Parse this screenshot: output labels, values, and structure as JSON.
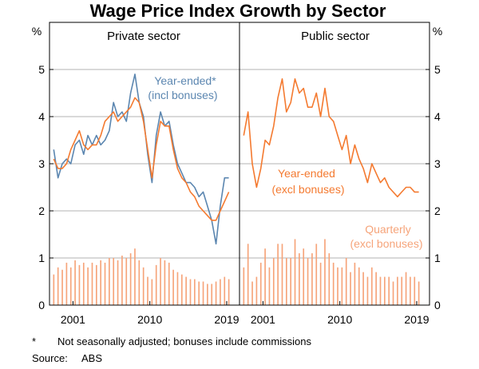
{
  "chart_data": {
    "type": "line",
    "title": "Wage Price Index Growth by Sector",
    "unit_label": "%",
    "ylim": [
      0,
      6
    ],
    "yticks": [
      0,
      1,
      2,
      3,
      4,
      5
    ],
    "panels": [
      {
        "title": "Private sector",
        "xlim": [
          1998.25,
          2020.5
        ],
        "xticks": [
          2001,
          2010,
          2019
        ],
        "xtick_labels": [
          "2001",
          "2010",
          "2019"
        ],
        "series": [
          {
            "name": "Year-ended*",
            "sublabel": "(incl bonuses)",
            "color": "#5b86b0",
            "type": "line",
            "x": [
              1998.75,
              1999.25,
              1999.75,
              2000.25,
              2000.75,
              2001.25,
              2001.75,
              2002.25,
              2002.75,
              2003.25,
              2003.75,
              2004.25,
              2004.75,
              2005.25,
              2005.75,
              2006.25,
              2006.75,
              2007.25,
              2007.75,
              2008.25,
              2008.75,
              2009.25,
              2009.75,
              2010.25,
              2010.75,
              2011.25,
              2011.75,
              2012.25,
              2012.75,
              2013.25,
              2013.75,
              2014.25,
              2014.75,
              2015.25,
              2015.75,
              2016.25,
              2016.75,
              2017.25,
              2017.75,
              2018.25,
              2018.75,
              2019.25
            ],
            "values": [
              3.3,
              2.7,
              3.0,
              3.1,
              3.0,
              3.4,
              3.5,
              3.2,
              3.6,
              3.4,
              3.6,
              3.4,
              3.5,
              3.7,
              4.3,
              4.0,
              4.1,
              3.9,
              4.5,
              4.9,
              4.3,
              4.0,
              3.2,
              2.6,
              3.6,
              4.1,
              3.8,
              3.9,
              3.4,
              3.0,
              2.8,
              2.6,
              2.6,
              2.5,
              2.3,
              2.4,
              2.1,
              1.8,
              1.3,
              2.1,
              2.7,
              2.7
            ]
          },
          {
            "name": "Year-ended",
            "sublabel": "(excl bonuses)",
            "color": "#f47a30",
            "type": "line",
            "x": [
              1998.75,
              1999.25,
              1999.75,
              2000.25,
              2000.75,
              2001.25,
              2001.75,
              2002.25,
              2002.75,
              2003.25,
              2003.75,
              2004.25,
              2004.75,
              2005.25,
              2005.75,
              2006.25,
              2006.75,
              2007.25,
              2007.75,
              2008.25,
              2008.75,
              2009.25,
              2009.75,
              2010.25,
              2010.75,
              2011.25,
              2011.75,
              2012.25,
              2012.75,
              2013.25,
              2013.75,
              2014.25,
              2014.75,
              2015.25,
              2015.75,
              2016.25,
              2016.75,
              2017.25,
              2017.75,
              2018.25,
              2018.75,
              2019.25
            ],
            "values": [
              3.1,
              2.9,
              2.9,
              3.0,
              3.3,
              3.5,
              3.7,
              3.4,
              3.3,
              3.4,
              3.4,
              3.6,
              3.9,
              4.0,
              4.1,
              3.9,
              4.0,
              4.1,
              4.2,
              4.4,
              4.3,
              3.9,
              3.3,
              2.7,
              3.4,
              3.9,
              3.8,
              3.8,
              3.3,
              2.9,
              2.7,
              2.6,
              2.4,
              2.3,
              2.1,
              2.0,
              1.9,
              1.8,
              1.8,
              2.0,
              2.2,
              2.4
            ]
          },
          {
            "name": "Quarterly",
            "sublabel": "(excl bonuses)",
            "color": "#f6a47a",
            "type": "bar",
            "x": [
              1998.75,
              1999.25,
              1999.75,
              2000.25,
              2000.75,
              2001.25,
              2001.75,
              2002.25,
              2002.75,
              2003.25,
              2003.75,
              2004.25,
              2004.75,
              2005.25,
              2005.75,
              2006.25,
              2006.75,
              2007.25,
              2007.75,
              2008.25,
              2008.75,
              2009.25,
              2009.75,
              2010.25,
              2010.75,
              2011.25,
              2011.75,
              2012.25,
              2012.75,
              2013.25,
              2013.75,
              2014.25,
              2014.75,
              2015.25,
              2015.75,
              2016.25,
              2016.75,
              2017.25,
              2017.75,
              2018.25,
              2018.75,
              2019.25
            ],
            "values": [
              0.65,
              0.8,
              0.75,
              0.9,
              0.8,
              0.95,
              0.85,
              0.9,
              0.8,
              0.9,
              0.85,
              0.95,
              0.9,
              1.0,
              1.0,
              0.95,
              1.05,
              1.0,
              1.1,
              1.2,
              0.95,
              0.8,
              0.6,
              0.55,
              0.85,
              1.0,
              0.95,
              0.9,
              0.75,
              0.7,
              0.65,
              0.6,
              0.55,
              0.55,
              0.5,
              0.5,
              0.45,
              0.45,
              0.5,
              0.55,
              0.6,
              0.55
            ]
          }
        ]
      },
      {
        "title": "Public sector",
        "xlim": [
          1998.25,
          2020.5
        ],
        "xticks": [
          2001,
          2010,
          2019
        ],
        "xtick_labels": [
          "2001",
          "2010",
          "2019"
        ],
        "series": [
          {
            "name": "Year-ended",
            "sublabel": "(excl bonuses)",
            "color": "#f47a30",
            "type": "line",
            "x": [
              1998.75,
              1999.25,
              1999.75,
              2000.25,
              2000.75,
              2001.25,
              2001.75,
              2002.25,
              2002.75,
              2003.25,
              2003.75,
              2004.25,
              2004.75,
              2005.25,
              2005.75,
              2006.25,
              2006.75,
              2007.25,
              2007.75,
              2008.25,
              2008.75,
              2009.25,
              2009.75,
              2010.25,
              2010.75,
              2011.25,
              2011.75,
              2012.25,
              2012.75,
              2013.25,
              2013.75,
              2014.25,
              2014.75,
              2015.25,
              2015.75,
              2016.25,
              2016.75,
              2017.25,
              2017.75,
              2018.25,
              2018.75,
              2019.25
            ],
            "values": [
              3.6,
              4.1,
              3.0,
              2.5,
              2.9,
              3.5,
              3.4,
              3.8,
              4.4,
              4.8,
              4.1,
              4.3,
              4.8,
              4.5,
              4.6,
              4.2,
              4.2,
              4.5,
              4.0,
              4.6,
              4.0,
              3.9,
              3.6,
              3.3,
              3.6,
              3.0,
              3.4,
              3.1,
              2.9,
              2.6,
              3.0,
              2.8,
              2.6,
              2.7,
              2.5,
              2.4,
              2.3,
              2.4,
              2.5,
              2.5,
              2.4,
              2.4
            ]
          },
          {
            "name": "Quarterly",
            "sublabel": "(excl bonuses)",
            "color": "#f6a47a",
            "type": "bar",
            "x": [
              1998.75,
              1999.25,
              1999.75,
              2000.25,
              2000.75,
              2001.25,
              2001.75,
              2002.25,
              2002.75,
              2003.25,
              2003.75,
              2004.25,
              2004.75,
              2005.25,
              2005.75,
              2006.25,
              2006.75,
              2007.25,
              2007.75,
              2008.25,
              2008.75,
              2009.25,
              2009.75,
              2010.25,
              2010.75,
              2011.25,
              2011.75,
              2012.25,
              2012.75,
              2013.25,
              2013.75,
              2014.25,
              2014.75,
              2015.25,
              2015.75,
              2016.25,
              2016.75,
              2017.25,
              2017.75,
              2018.25,
              2018.75,
              2019.25
            ],
            "values": [
              0.8,
              1.3,
              0.5,
              0.6,
              0.9,
              1.2,
              0.8,
              1.0,
              1.3,
              1.3,
              1.0,
              1.0,
              1.4,
              1.1,
              1.2,
              1.0,
              1.1,
              1.3,
              0.9,
              1.4,
              1.1,
              0.9,
              0.8,
              0.8,
              1.0,
              0.7,
              0.9,
              0.8,
              0.7,
              0.6,
              0.8,
              0.7,
              0.6,
              0.6,
              0.6,
              0.5,
              0.6,
              0.6,
              0.7,
              0.6,
              0.6,
              0.5
            ]
          }
        ]
      }
    ]
  },
  "footnote": {
    "marker": "*",
    "text": "Not seasonally adjusted; bonuses include commissions"
  },
  "source": {
    "label": "Source:",
    "text": "ABS"
  }
}
